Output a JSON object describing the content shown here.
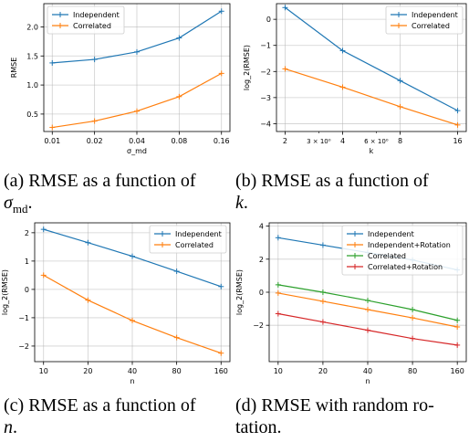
{
  "chart_data": [
    {
      "type": "line",
      "xscale": "log2",
      "x": [
        0.01,
        0.02,
        0.04,
        0.08,
        0.16
      ],
      "xticks": [
        "0.01",
        "0.02",
        "0.04",
        "0.08",
        "0.16"
      ],
      "xlabel": "σ_md",
      "ylabel": "RMSE",
      "ylim": [
        0.2,
        2.4
      ],
      "yticks": [
        0.5,
        1.0,
        1.5,
        2.0
      ],
      "ytick_labels": [
        "0.5",
        "1.0",
        "1.5",
        "2.0"
      ],
      "grid": true,
      "legend_position": "top-left",
      "series": [
        {
          "name": "Independent",
          "color": "#1f77b4",
          "values": [
            1.38,
            1.44,
            1.57,
            1.81,
            2.27
          ]
        },
        {
          "name": "Correlated",
          "color": "#ff7f0e",
          "values": [
            0.27,
            0.38,
            0.55,
            0.8,
            1.2
          ]
        }
      ]
    },
    {
      "type": "line",
      "xscale": "log2",
      "x": [
        2,
        4,
        8,
        16
      ],
      "xticks": [
        "2",
        "4",
        "8",
        "16"
      ],
      "minor_xticks": [
        {
          "x": 3,
          "label": "3 × 10⁰"
        },
        {
          "x": 6,
          "label": "6 × 10⁰"
        }
      ],
      "xlabel": "k",
      "ylabel": "log_2(RMSE)",
      "ylim": [
        -4.3,
        0.6
      ],
      "yticks": [
        -4,
        -3,
        -2,
        -1,
        0
      ],
      "ytick_labels": [
        "−4",
        "−3",
        "−2",
        "−1",
        "0"
      ],
      "grid": true,
      "legend_position": "top-right",
      "series": [
        {
          "name": "Independent",
          "color": "#1f77b4",
          "values": [
            0.45,
            -1.2,
            -2.35,
            -3.5
          ]
        },
        {
          "name": "Correlated",
          "color": "#ff7f0e",
          "values": [
            -1.9,
            -2.6,
            -3.35,
            -4.05
          ]
        }
      ]
    },
    {
      "type": "line",
      "xscale": "log2",
      "x": [
        10,
        20,
        40,
        80,
        160
      ],
      "xticks": [
        "10",
        "20",
        "40",
        "80",
        "160"
      ],
      "xlabel": "n",
      "ylabel": "log_2(RMSE)",
      "ylim": [
        -2.55,
        2.35
      ],
      "yticks": [
        -2,
        -1,
        0,
        1,
        2
      ],
      "ytick_labels": [
        "−2",
        "−1",
        "0",
        "1",
        "2"
      ],
      "grid": true,
      "legend_position": "top-right",
      "series": [
        {
          "name": "Independent",
          "color": "#1f77b4",
          "values": [
            2.12,
            1.65,
            1.17,
            0.64,
            0.1
          ]
        },
        {
          "name": "Correlated",
          "color": "#ff7f0e",
          "values": [
            0.5,
            -0.38,
            -1.1,
            -1.7,
            -2.25
          ]
        }
      ]
    },
    {
      "type": "line",
      "xscale": "log2",
      "x": [
        10,
        20,
        40,
        80,
        160
      ],
      "xticks": [
        "10",
        "20",
        "40",
        "80",
        "160"
      ],
      "xlabel": "n",
      "ylabel": "log_2(RMSE)",
      "ylim": [
        -4.2,
        4.2
      ],
      "yticks": [
        -2,
        0,
        2,
        4
      ],
      "ytick_labels": [
        "−2",
        "0",
        "2",
        "4"
      ],
      "grid": true,
      "legend_position": "top-right",
      "series": [
        {
          "name": "Independent",
          "color": "#1f77b4",
          "values": [
            3.3,
            2.85,
            2.4,
            1.95,
            1.35
          ]
        },
        {
          "name": "Independent+Rotation",
          "color": "#ff7f0e",
          "values": [
            -0.05,
            -0.55,
            -1.05,
            -1.55,
            -2.1
          ]
        },
        {
          "name": "Correlated",
          "color": "#2ca02c",
          "values": [
            0.45,
            0.0,
            -0.5,
            -1.05,
            -1.7
          ]
        },
        {
          "name": "Correlated+Rotation",
          "color": "#d62728",
          "values": [
            -1.3,
            -1.8,
            -2.3,
            -2.8,
            -3.2
          ]
        }
      ]
    }
  ],
  "captions": {
    "a": {
      "line1": "(a) RMSE as a function of",
      "math": "σ",
      "sub": "md",
      "tail": "."
    },
    "b": {
      "line1": "(b) RMSE as a function of",
      "math": "k",
      "tail": "."
    },
    "c": {
      "line1": "(c) RMSE as a function of",
      "math": "n",
      "tail": "."
    },
    "d": {
      "line1": "(d) RMSE with random ro-",
      "line2": "tation."
    }
  }
}
